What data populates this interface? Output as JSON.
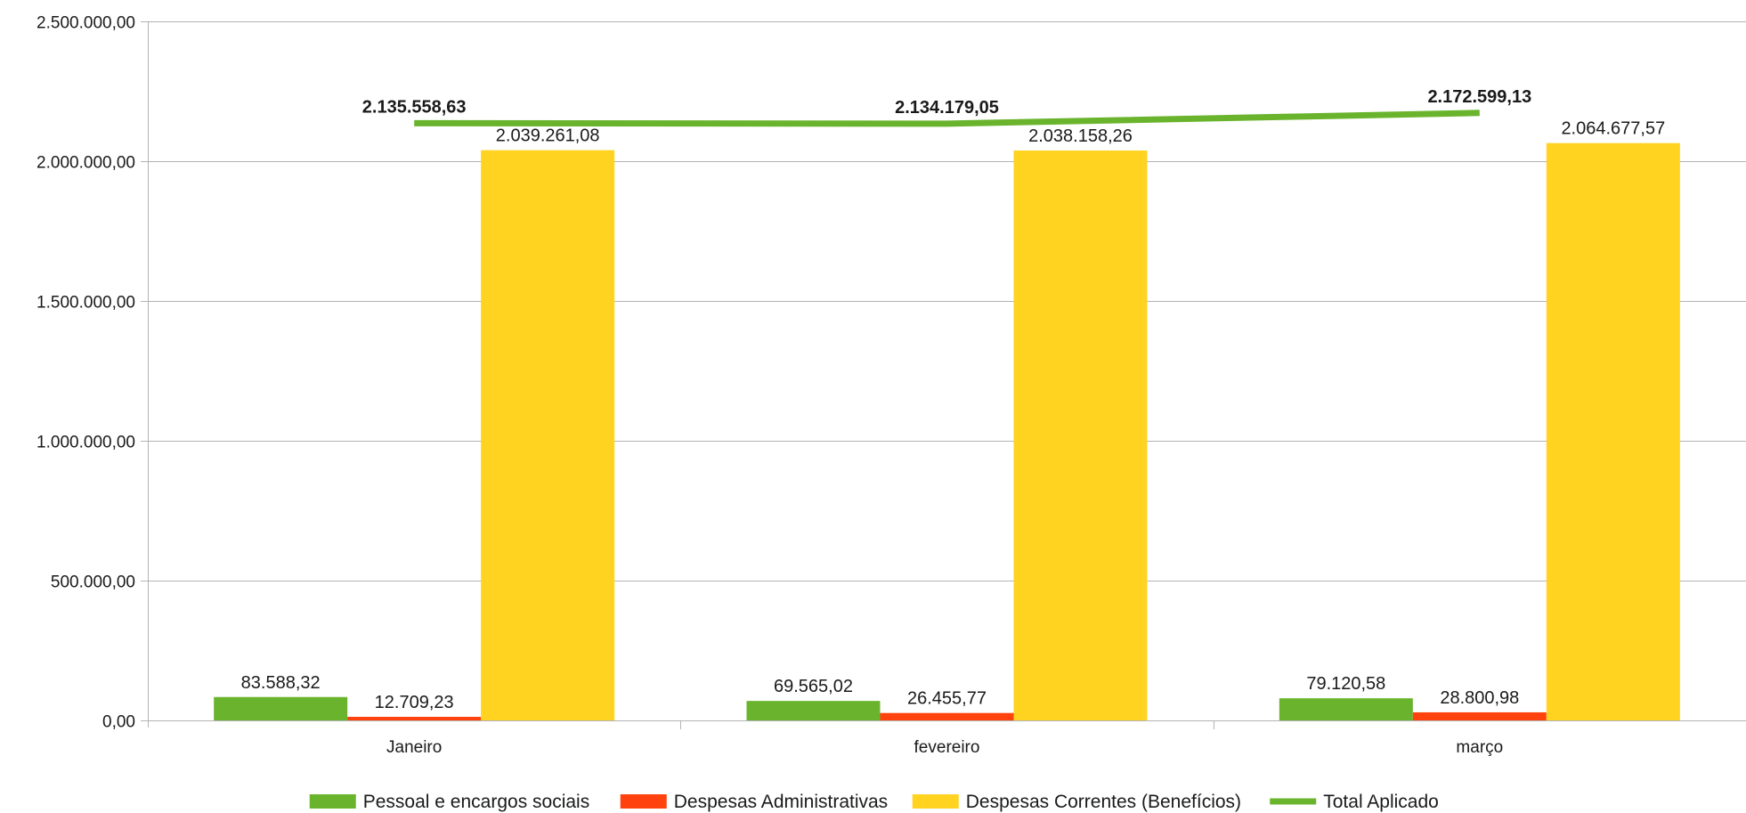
{
  "chart_data": {
    "type": "bar",
    "categories": [
      "Janeiro",
      "fevereiro",
      "março"
    ],
    "ylim": [
      0,
      2500000
    ],
    "yticks": [
      0,
      500000,
      1000000,
      1500000,
      2000000,
      2500000
    ],
    "ytick_labels": [
      "0,00",
      "500.000,00",
      "1.000.000,00",
      "1.500.000,00",
      "2.000.000,00",
      "2.500.000,00"
    ],
    "grid": true,
    "legend_position": "bottom",
    "series": [
      {
        "name": "Pessoal e encargos sociais",
        "kind": "bar",
        "color": "#6ab42d",
        "values": [
          83588.32,
          69565.02,
          79120.58
        ],
        "labels": [
          "83.588,32",
          "69.565,02",
          "79.120,58"
        ]
      },
      {
        "name": "Despesas Administrativas",
        "kind": "bar",
        "color": "#ff420e",
        "values": [
          12709.23,
          26455.77,
          28800.98
        ],
        "labels": [
          "12.709,23",
          "26.455,77",
          "28.800,98"
        ]
      },
      {
        "name": "Despesas Correntes (Benefícios)",
        "kind": "bar",
        "color": "#ffd320",
        "values": [
          2039261.08,
          2038158.26,
          2064677.57
        ],
        "labels": [
          "2.039.261,08",
          "2.038.158,26",
          "2.064.677,57"
        ]
      },
      {
        "name": "Total Aplicado",
        "kind": "line",
        "color": "#6ab42d",
        "values": [
          2135558.63,
          2134179.05,
          2172599.13
        ],
        "labels": [
          "2.135.558,63",
          "2.134.179,05",
          "2.172.599,13"
        ]
      }
    ]
  }
}
